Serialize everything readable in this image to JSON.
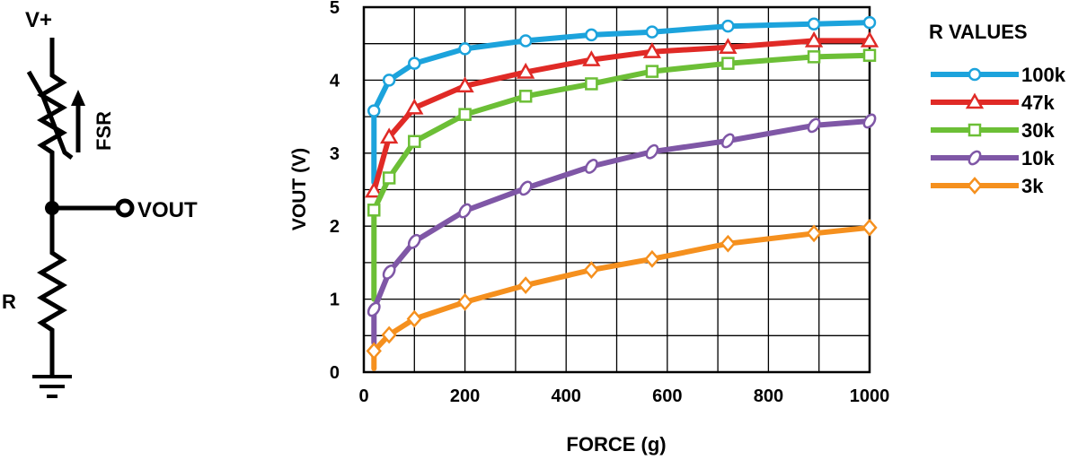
{
  "schematic": {
    "supply_label": "V+",
    "fsr_label": "FSR",
    "vout_label": "VOUT",
    "resistor_label": "R"
  },
  "chart_data": {
    "type": "line",
    "title": "",
    "xlabel": "FORCE (g)",
    "ylabel": "VOUT (V)",
    "xlim": [
      0,
      1000
    ],
    "ylim": [
      0,
      5
    ],
    "xticks": [
      0,
      200,
      400,
      600,
      800,
      1000
    ],
    "yticks": [
      0,
      1,
      2,
      3,
      4,
      5
    ],
    "grid": true,
    "legend_title": "R VALUES",
    "legend_position": "right",
    "series": [
      {
        "name": "100k",
        "color": "#1ca3dc",
        "marker": "circle",
        "points": [
          [
            20,
            2.6
          ],
          [
            20,
            3.58
          ],
          [
            50,
            4.0
          ],
          [
            100,
            4.23
          ],
          [
            200,
            4.43
          ],
          [
            320,
            4.54
          ],
          [
            450,
            4.62
          ],
          [
            570,
            4.66
          ],
          [
            720,
            4.74
          ],
          [
            890,
            4.77
          ],
          [
            1000,
            4.79
          ]
        ]
      },
      {
        "name": "47k",
        "color": "#e02a26",
        "marker": "triangle",
        "points": [
          [
            20,
            2.48
          ],
          [
            50,
            3.22
          ],
          [
            100,
            3.62
          ],
          [
            200,
            3.92
          ],
          [
            320,
            4.11
          ],
          [
            450,
            4.28
          ],
          [
            570,
            4.39
          ],
          [
            720,
            4.45
          ],
          [
            890,
            4.54
          ],
          [
            1000,
            4.54
          ]
        ]
      },
      {
        "name": "30k",
        "color": "#6cbf36",
        "marker": "square",
        "points": [
          [
            20,
            1.0
          ],
          [
            20,
            2.22
          ],
          [
            50,
            2.66
          ],
          [
            100,
            3.16
          ],
          [
            200,
            3.53
          ],
          [
            320,
            3.78
          ],
          [
            450,
            3.95
          ],
          [
            570,
            4.12
          ],
          [
            720,
            4.23
          ],
          [
            890,
            4.32
          ],
          [
            1000,
            4.34
          ]
        ]
      },
      {
        "name": "10k",
        "color": "#7f57a6",
        "marker": "oval",
        "points": [
          [
            20,
            0.4
          ],
          [
            20,
            0.86
          ],
          [
            50,
            1.37
          ],
          [
            100,
            1.79
          ],
          [
            200,
            2.21
          ],
          [
            320,
            2.52
          ],
          [
            450,
            2.82
          ],
          [
            570,
            3.02
          ],
          [
            720,
            3.17
          ],
          [
            890,
            3.38
          ],
          [
            1000,
            3.44
          ]
        ]
      },
      {
        "name": "3k",
        "color": "#f5901e",
        "marker": "diamond",
        "points": [
          [
            20,
            0.05
          ],
          [
            20,
            0.29
          ],
          [
            50,
            0.51
          ],
          [
            100,
            0.73
          ],
          [
            200,
            0.96
          ],
          [
            320,
            1.19
          ],
          [
            450,
            1.4
          ],
          [
            570,
            1.55
          ],
          [
            720,
            1.76
          ],
          [
            890,
            1.9
          ],
          [
            1000,
            1.98
          ]
        ]
      }
    ]
  }
}
